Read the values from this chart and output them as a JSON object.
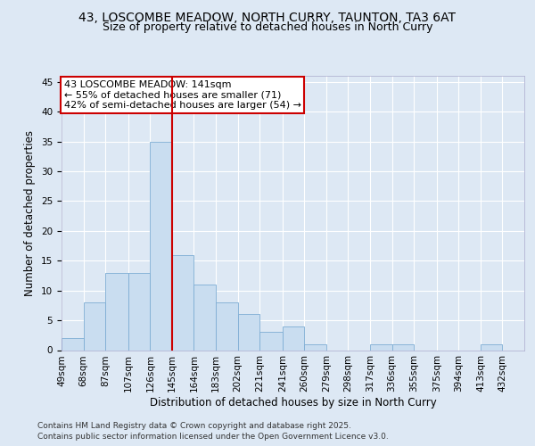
{
  "title_line1": "43, LOSCOMBE MEADOW, NORTH CURRY, TAUNTON, TA3 6AT",
  "title_line2": "Size of property relative to detached houses in North Curry",
  "xlabel": "Distribution of detached houses by size in North Curry",
  "ylabel": "Number of detached properties",
  "bin_labels": [
    "49sqm",
    "68sqm",
    "87sqm",
    "107sqm",
    "126sqm",
    "145sqm",
    "164sqm",
    "183sqm",
    "202sqm",
    "221sqm",
    "241sqm",
    "260sqm",
    "279sqm",
    "298sqm",
    "317sqm",
    "336sqm",
    "355sqm",
    "375sqm",
    "394sqm",
    "413sqm",
    "432sqm"
  ],
  "bin_edges": [
    49,
    68,
    87,
    107,
    126,
    145,
    164,
    183,
    202,
    221,
    241,
    260,
    279,
    298,
    317,
    336,
    355,
    375,
    394,
    413,
    432
  ],
  "counts": [
    2,
    8,
    13,
    13,
    35,
    16,
    11,
    8,
    6,
    3,
    4,
    1,
    0,
    0,
    1,
    1,
    0,
    0,
    0,
    1,
    0
  ],
  "bar_color": "#c9ddf0",
  "bar_edge_color": "#7eadd4",
  "vline_x": 145,
  "vline_color": "#cc0000",
  "annotation_text": "43 LOSCOMBE MEADOW: 141sqm\n← 55% of detached houses are smaller (71)\n42% of semi-detached houses are larger (54) →",
  "annotation_box_facecolor": "#ffffff",
  "annotation_box_edgecolor": "#cc0000",
  "ylim": [
    0,
    46
  ],
  "yticks": [
    0,
    5,
    10,
    15,
    20,
    25,
    30,
    35,
    40,
    45
  ],
  "bg_color": "#dde8f4",
  "plot_bg_color": "#dde8f4",
  "footer_line1": "Contains HM Land Registry data © Crown copyright and database right 2025.",
  "footer_line2": "Contains public sector information licensed under the Open Government Licence v3.0.",
  "title_fontsize": 10,
  "subtitle_fontsize": 9,
  "axis_label_fontsize": 8.5,
  "tick_fontsize": 7.5,
  "annotation_fontsize": 8,
  "footer_fontsize": 6.5
}
